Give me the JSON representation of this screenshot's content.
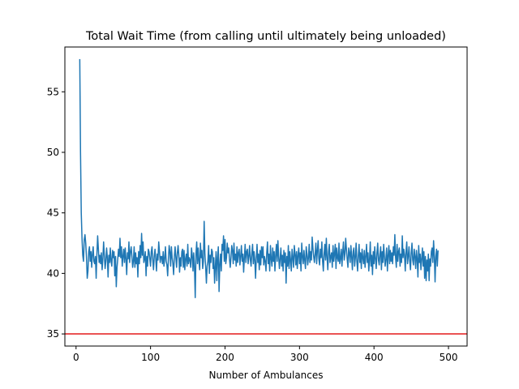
{
  "chart_data": {
    "type": "line",
    "title": "Total Wait Time (from calling until ultimately being unloaded)",
    "xlabel": "Number of Ambulances",
    "ylabel": "",
    "xlim": [
      -15,
      525
    ],
    "ylim": [
      34,
      58.7
    ],
    "x_ticks": [
      0,
      100,
      200,
      300,
      400,
      500
    ],
    "y_ticks": [
      35,
      40,
      45,
      50,
      55
    ],
    "grid": false,
    "legend": "none",
    "colors": {
      "series": "#1f77b4",
      "reference": "#e41a1c"
    },
    "reference_line": {
      "y": 35
    },
    "series": [
      {
        "x_start": 5,
        "x_step": 1,
        "values": [
          57.7,
          50.0,
          45.0,
          42.9,
          41.5,
          41.0,
          42.8,
          43.2,
          42.5,
          41.3,
          39.6,
          40.2,
          41.8,
          42.2,
          41.0,
          41.8,
          40.5,
          41.6,
          42.2,
          41.0,
          40.8,
          41.4,
          39.6,
          41.6,
          43.1,
          42.0,
          40.9,
          41.5,
          40.8,
          41.7,
          40.3,
          41.2,
          42.6,
          41.5,
          40.4,
          41.0,
          42.1,
          41.3,
          39.7,
          41.5,
          40.9,
          42.1,
          41.0,
          40.6,
          41.9,
          41.3,
          41.8,
          39.8,
          41.4,
          38.9,
          40.5,
          41.2,
          42.0,
          41.4,
          42.9,
          41.3,
          42.2,
          40.6,
          41.4,
          42.0,
          40.9,
          42.1,
          41.2,
          39.9,
          41.7,
          41.2,
          42.6,
          40.9,
          41.8,
          42.2,
          41.4,
          40.5,
          41.0,
          42.2,
          40.5,
          41.7,
          40.8,
          41.3,
          39.7,
          41.8,
          40.8,
          42.3,
          41.3,
          43.3,
          41.5,
          42.6,
          40.9,
          41.2,
          41.8,
          39.8,
          41.4,
          40.6,
          42.0,
          41.8,
          41.2,
          40.6,
          41.8,
          42.2,
          41.1,
          40.3,
          41.4,
          42.0,
          41.2,
          40.2,
          41.6,
          41.1,
          42.6,
          41.8,
          40.9,
          41.4,
          41.4,
          40.8,
          41.8,
          40.6,
          41.2,
          42.2,
          41.0,
          40.7,
          39.8,
          41.2,
          42.3,
          41.8,
          40.6,
          42.2,
          41.3,
          40.8,
          39.9,
          41.4,
          42.2,
          41.3,
          40.5,
          41.7,
          42.3,
          41.5,
          40.1,
          41.3,
          40.6,
          41.8,
          42.0,
          40.5,
          41.9,
          40.3,
          41.2,
          41.6,
          40.6,
          42.4,
          40.8,
          41.3,
          41.1,
          40.5,
          42.1,
          41.5,
          40.2,
          41.7,
          40.5,
          38.0,
          41.6,
          42.6,
          40.8,
          42.1,
          41.0,
          40.3,
          42.5,
          41.3,
          41.9,
          40.4,
          41.0,
          44.3,
          41.6,
          40.5,
          39.2,
          40.6,
          41.0,
          42.3,
          40.0,
          41.5,
          40.9,
          42.0,
          41.8,
          40.4,
          41.3,
          39.2,
          40.5,
          41.8,
          39.4,
          41.3,
          42.2,
          38.5,
          40.7,
          41.6,
          40.2,
          42.4,
          41.9,
          43.1,
          41.0,
          42.8,
          40.8,
          41.3,
          42.5,
          41.7,
          42.1,
          41.2,
          40.5,
          41.3,
          42.3,
          41.9,
          40.8,
          42.5,
          41.1,
          41.6,
          40.6,
          42.2,
          40.9,
          41.7,
          42.0,
          40.7,
          41.4,
          42.3,
          41.0,
          41.6,
          40.1,
          41.3,
          42.4,
          40.9,
          41.8,
          42.0,
          40.8,
          41.4,
          42.3,
          41.1,
          40.6,
          41.7,
          42.4,
          40.8,
          41.8,
          41.1,
          39.6,
          41.3,
          42.4,
          40.9,
          41.6,
          40.3,
          41.9,
          40.7,
          42.2,
          41.3,
          42.2,
          40.7,
          41.4,
          41.0,
          40.2,
          41.7,
          42.6,
          40.8,
          41.6,
          40.2,
          42.3,
          41.2,
          40.6,
          42.1,
          41.0,
          41.8,
          40.2,
          41.5,
          42.4,
          41.0,
          42.7,
          41.4,
          40.4,
          41.2,
          42.1,
          40.6,
          41.5,
          40.2,
          41.9,
          40.9,
          41.7,
          39.2,
          41.4,
          40.6,
          42.3,
          40.4,
          41.8,
          41.1,
          40.2,
          42.0,
          41.3,
          40.5,
          42.3,
          41.6,
          40.7,
          41.8,
          40.4,
          41.5,
          42.1,
          40.8,
          41.7,
          40.2,
          42.5,
          41.4,
          40.8,
          41.9,
          41.1,
          40.4,
          42.2,
          41.6,
          40.7,
          41.3,
          42.4,
          40.9,
          41.8,
          41.1,
          43.0,
          42.1,
          41.4,
          40.9,
          41.6,
          42.5,
          40.8,
          41.9,
          42.7,
          41.2,
          40.7,
          42.0,
          41.3,
          42.6,
          41.0,
          40.2,
          41.6,
          42.4,
          41.1,
          42.9,
          41.3,
          40.3,
          41.8,
          42.4,
          40.9,
          41.4,
          41.7,
          40.5,
          42.3,
          41.0,
          41.6,
          42.4,
          40.4,
          42.1,
          41.3,
          41.0,
          42.5,
          40.8,
          41.2,
          42.0,
          40.6,
          41.8,
          42.6,
          41.1,
          41.6,
          42.9,
          42.0,
          41.2,
          40.5,
          42.1,
          41.7,
          40.9,
          42.3,
          41.4,
          40.3,
          41.8,
          42.1,
          40.6,
          41.3,
          42.5,
          41.0,
          40.2,
          41.5,
          42.4,
          40.9,
          41.7,
          40.4,
          42.0,
          41.3,
          40.8,
          41.9,
          40.5,
          41.4,
          42.4,
          40.9,
          41.7,
          40.2,
          41.1,
          42.6,
          40.6,
          41.5,
          39.9,
          41.8,
          40.8,
          42.2,
          41.2,
          40.4,
          41.7,
          42.5,
          41.1,
          40.7,
          41.6,
          42.2,
          40.3,
          41.8,
          40.9,
          42.4,
          41.4,
          40.6,
          41.2,
          42.1,
          40.2,
          41.5,
          42.3,
          40.8,
          41.9,
          41.0,
          41.7,
          40.8,
          42.2,
          41.5,
          43.2,
          41.3,
          40.5,
          42.4,
          41.0,
          41.8,
          42.1,
          40.6,
          41.6,
          40.9,
          43.1,
          41.3,
          42.0,
          41.5,
          40.2,
          41.8,
          42.6,
          40.8,
          41.4,
          42.2,
          41.0,
          40.3,
          41.7,
          42.5,
          41.1,
          40.7,
          42.0,
          41.4,
          40.4,
          41.9,
          41.2,
          39.7,
          42.3,
          40.9,
          41.6,
          40.3,
          41.2,
          42.1,
          40.6,
          41.8,
          39.6,
          41.4,
          39.4,
          41.1,
          40.2,
          41.6,
          39.4,
          41.2,
          40.6,
          41.8,
          42.1,
          40.9,
          42.7,
          41.5,
          39.3,
          41.3,
          42.0,
          40.6,
          41.9
        ]
      }
    ]
  }
}
